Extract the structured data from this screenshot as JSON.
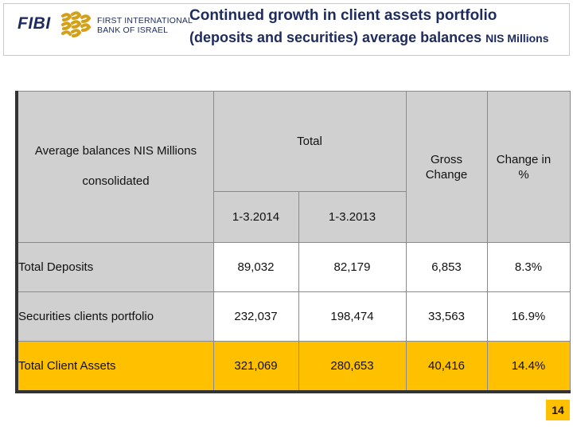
{
  "header": {
    "logo_text": "FIBI",
    "bank_name_line1": "FIRST INTERNATIONAL",
    "bank_name_line2": "BANK OF ISRAEL",
    "title_line1": "Continued growth in client assets portfolio",
    "title_line2": "(deposits and securities) average balances",
    "title_line2_suffix": "NIS Millions"
  },
  "table": {
    "corner_label_1": "Average balances NIS Millions",
    "corner_label_2": "consolidated",
    "total_header": "Total",
    "col_2014": "1-3.2014",
    "col_2013": "1-3.2013",
    "gross_change_header": "Gross Change",
    "change_pct_header": "Change in %",
    "rows": [
      {
        "label": "Total Deposits",
        "v2014": "89,032",
        "v2013": "82,179",
        "gross": "6,853",
        "pct": "8.3%"
      },
      {
        "label": "Securities clients portfolio",
        "v2014": "232,037",
        "v2013": "198,474",
        "gross": "33,563",
        "pct": "16.9%"
      },
      {
        "label": "Total Client Assets",
        "v2014": "321,069",
        "v2013": "280,653",
        "gross": "40,416",
        "pct": "14.4%"
      }
    ]
  },
  "page_number": "14",
  "colors": {
    "highlight": "#ffc000",
    "header_grey": "#d0d0d0",
    "brand_navy": "#1d2b5e"
  }
}
